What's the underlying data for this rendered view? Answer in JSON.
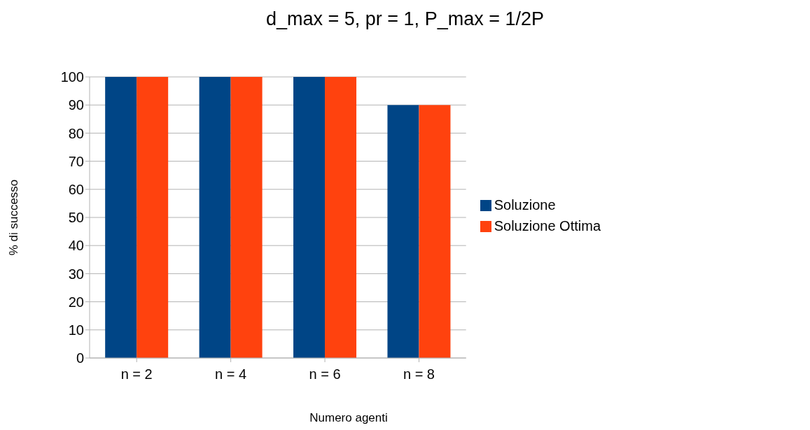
{
  "chart_data": {
    "type": "bar",
    "title": "d_max = 5, pr = 1, P_max = 1/2P",
    "xlabel": "Numero agenti",
    "ylabel": "% di successo",
    "categories": [
      "n = 2",
      "n = 4",
      "n = 6",
      "n = 8"
    ],
    "series": [
      {
        "name": "Soluzione",
        "color": "#004586",
        "values": [
          100,
          100,
          100,
          90
        ]
      },
      {
        "name": "Soluzione Ottima",
        "color": "#ff420e",
        "values": [
          100,
          100,
          100,
          90
        ]
      }
    ],
    "ylim": [
      0,
      100
    ],
    "yticks": [
      0,
      10,
      20,
      30,
      40,
      50,
      60,
      70,
      80,
      90,
      100
    ],
    "grid": "y",
    "legend": "right"
  }
}
